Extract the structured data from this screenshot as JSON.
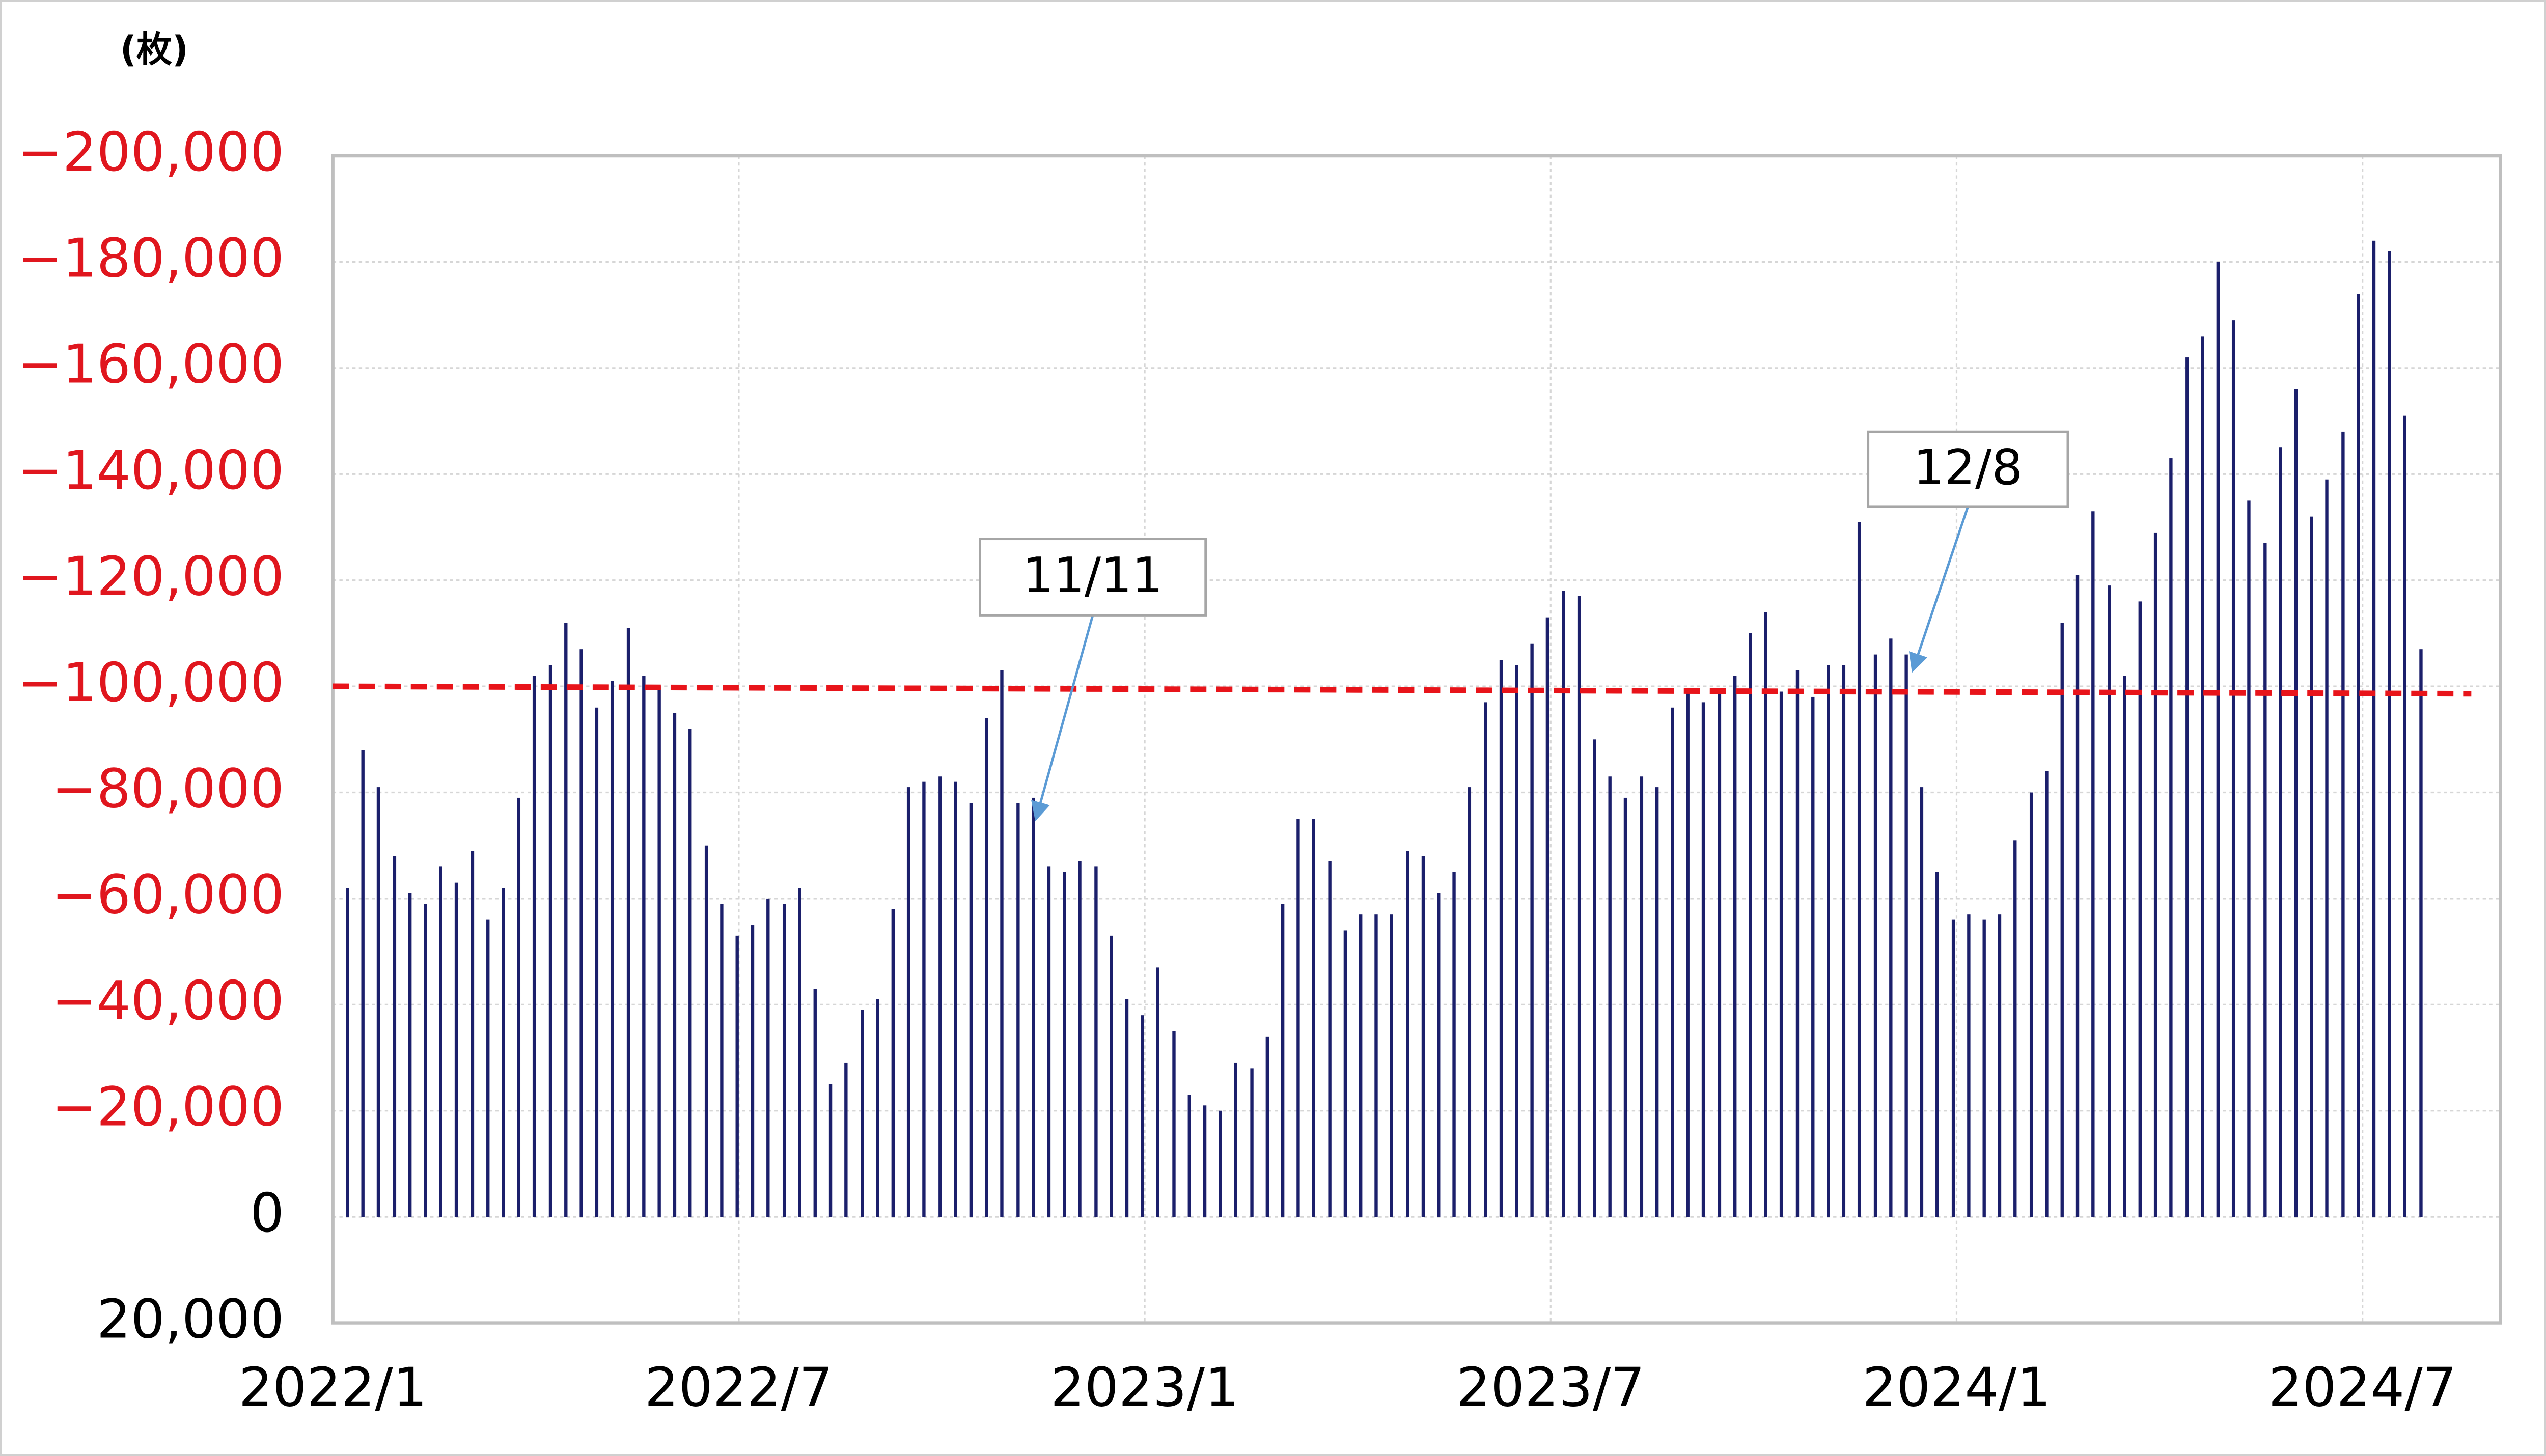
{
  "chart_data": {
    "type": "bar",
    "y_unit_label": "(枚)",
    "inverted": true,
    "ylim": [
      -200000,
      20000
    ],
    "yticks": [
      {
        "value": -200000,
        "label": "−200,000"
      },
      {
        "value": -180000,
        "label": "−180,000"
      },
      {
        "value": -160000,
        "label": "−160,000"
      },
      {
        "value": -140000,
        "label": "−140,000"
      },
      {
        "value": -120000,
        "label": "−120,000"
      },
      {
        "value": -100000,
        "label": "−100,000"
      },
      {
        "value": -80000,
        "label": "−80,000"
      },
      {
        "value": -60000,
        "label": "−60,000"
      },
      {
        "value": -40000,
        "label": "−40,000"
      },
      {
        "value": -20000,
        "label": "−20,000"
      },
      0,
      {
        "value": 20000,
        "label": "20,000"
      }
    ],
    "negative_tick_color": "#e0161e",
    "tick_color": "#000000",
    "xlim": [
      2022,
      2024.67
    ],
    "xticks": [
      {
        "value": 2022.0,
        "label": "2022/1"
      },
      {
        "value": 2022.5,
        "label": "2022/7"
      },
      {
        "value": 2023.0,
        "label": "2023/1"
      },
      {
        "value": 2023.5,
        "label": "2023/7"
      },
      {
        "value": 2024.0,
        "label": "2024/1"
      },
      {
        "value": 2024.5,
        "label": "2024/7"
      }
    ],
    "grid": true,
    "color": "#1b1f6b",
    "x": [
      2022.018,
      2022.037,
      2022.056,
      2022.076,
      2022.095,
      2022.114,
      2022.133,
      2022.152,
      2022.172,
      2022.191,
      2022.21,
      2022.229,
      2022.248,
      2022.268,
      2022.287,
      2022.306,
      2022.325,
      2022.344,
      2022.364,
      2022.383,
      2022.402,
      2022.421,
      2022.44,
      2022.46,
      2022.479,
      2022.498,
      2022.517,
      2022.536,
      2022.556,
      2022.575,
      2022.594,
      2022.613,
      2022.632,
      2022.652,
      2022.671,
      2022.69,
      2022.709,
      2022.728,
      2022.748,
      2022.767,
      2022.786,
      2022.805,
      2022.824,
      2022.844,
      2022.863,
      2022.882,
      2022.901,
      2022.92,
      2022.94,
      2022.959,
      2022.978,
      2022.997,
      2023.016,
      2023.036,
      2023.055,
      2023.074,
      2023.093,
      2023.112,
      2023.132,
      2023.151,
      2023.17,
      2023.189,
      2023.208,
      2023.228,
      2023.247,
      2023.266,
      2023.285,
      2023.304,
      2023.324,
      2023.343,
      2023.362,
      2023.381,
      2023.4,
      2023.42,
      2023.439,
      2023.458,
      2023.477,
      2023.496,
      2023.516,
      2023.535,
      2023.554,
      2023.573,
      2023.592,
      2023.612,
      2023.631,
      2023.65,
      2023.669,
      2023.688,
      2023.708,
      2023.727,
      2023.746,
      2023.765,
      2023.784,
      2023.804,
      2023.823,
      2023.842,
      2023.861,
      2023.88,
      2023.9,
      2023.919,
      2023.938,
      2023.957,
      2023.976,
      2023.996,
      2024.015,
      2024.034,
      2024.053,
      2024.072,
      2024.092,
      2024.111,
      2024.13,
      2024.149,
      2024.168,
      2024.188,
      2024.207,
      2024.226,
      2024.245,
      2024.264,
      2024.284,
      2024.303,
      2024.322,
      2024.341,
      2024.36,
      2024.38,
      2024.399,
      2024.418,
      2024.437,
      2024.456,
      2024.476,
      2024.495,
      2024.514,
      2024.533,
      2024.552,
      2024.572
    ],
    "values": [
      -62000,
      -88000,
      -81000,
      -68000,
      -61000,
      -59000,
      -66000,
      -63000,
      -69000,
      -56000,
      -62000,
      -79000,
      -102000,
      -104000,
      -112000,
      -107000,
      -96000,
      -101000,
      -111000,
      -102000,
      -100000,
      -95000,
      -92000,
      -70000,
      -59000,
      -53000,
      -55000,
      -60000,
      -59000,
      -62000,
      -43000,
      -25000,
      -29000,
      -39000,
      -41000,
      -58000,
      -81000,
      -82000,
      -83000,
      -82000,
      -78000,
      -94000,
      -103000,
      -78000,
      -79000,
      -66000,
      -65000,
      -67000,
      -66000,
      -53000,
      -41000,
      -38000,
      -47000,
      -35000,
      -23000,
      -21000,
      -20000,
      -29000,
      -28000,
      -34000,
      -59000,
      -75000,
      -75000,
      -67000,
      -54000,
      -57000,
      -57000,
      -57000,
      -69000,
      -68000,
      -61000,
      -65000,
      -81000,
      -97000,
      -105000,
      -104000,
      -108000,
      -113000,
      -118000,
      -117000,
      -90000,
      -83000,
      -79000,
      -83000,
      -81000,
      -96000,
      -99000,
      -97000,
      -99000,
      -102000,
      -110000,
      -114000,
      -99000,
      -103000,
      -98000,
      -104000,
      -104000,
      -131000,
      -106000,
      -109000,
      -106000,
      -81000,
      -65000,
      -56000,
      -57000,
      -56000,
      -57000,
      -71000,
      -80000,
      -84000,
      -112000,
      -121000,
      -133000,
      -119000,
      -102000,
      -116000,
      -129000,
      -143000,
      -162000,
      -166000,
      -180000,
      -169000,
      -135000,
      -127000,
      -145000,
      -156000,
      -132000,
      -139000,
      -148000,
      -174000,
      -184000,
      -182000,
      -151000,
      -107000
    ],
    "trend_line": {
      "x": [
        2022.0,
        2024.634
      ],
      "values": [
        -100000,
        -98600
      ],
      "color": "#e8141a"
    },
    "annotations": [
      {
        "text": "11/11",
        "x": 2022.866,
        "y": -75000
      },
      {
        "text": "12/8",
        "x": 2023.946,
        "y": -103000
      }
    ],
    "annotation_arrow_color": "#5b9bd5"
  }
}
